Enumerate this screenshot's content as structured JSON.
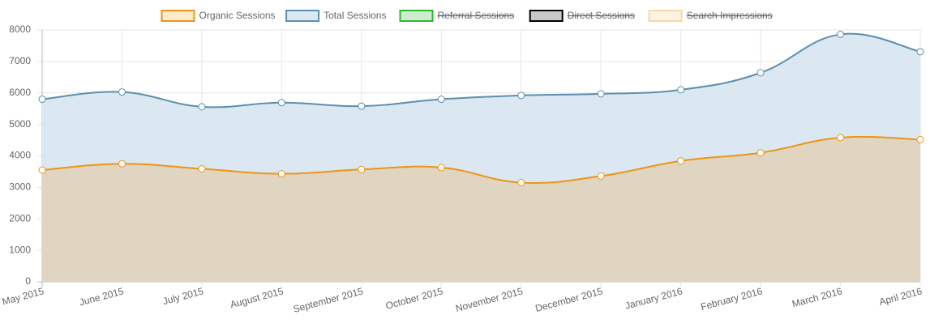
{
  "chart_data": {
    "type": "area",
    "categories": [
      "May 2015",
      "June 2015",
      "July 2015",
      "August 2015",
      "September 2015",
      "October 2015",
      "November 2015",
      "December 2015",
      "January 2016",
      "February 2016",
      "March 2016",
      "April 2016"
    ],
    "series": [
      {
        "name": "Organic Sessions",
        "color": "#ee9417",
        "fill": "#dfd5c0",
        "legend_fill": "#fde9cc",
        "values": [
          3550,
          3750,
          3590,
          3430,
          3570,
          3630,
          3150,
          3360,
          3840,
          4100,
          4580,
          4520
        ]
      },
      {
        "name": "Total Sessions",
        "color": "#5b8fae",
        "fill": "#dce8f1",
        "legend_fill": "#dce8f1",
        "values": [
          5800,
          6030,
          5560,
          5690,
          5580,
          5800,
          5920,
          5970,
          6100,
          6640,
          7860,
          7310
        ]
      },
      {
        "name": "Referral Sessions",
        "color": "#2fb52f",
        "legend_fill": "#cdeccd",
        "hidden": true
      },
      {
        "name": "Direct Sessions",
        "color": "#000000",
        "legend_fill": "#c8c8c8",
        "hidden": true
      },
      {
        "name": "Search Impressions",
        "color": "#f8d8a5",
        "legend_fill": "#fdf3e3",
        "hidden": true
      }
    ],
    "ylim": [
      0,
      8000
    ],
    "yticks": [
      0,
      1000,
      2000,
      3000,
      4000,
      5000,
      6000,
      7000,
      8000
    ],
    "grid": true
  }
}
